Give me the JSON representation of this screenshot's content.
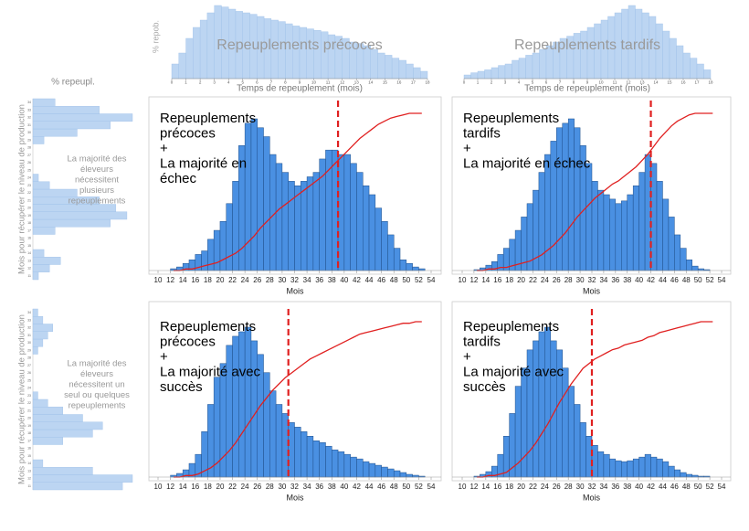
{
  "chart_data": [
    {
      "type": "histogram",
      "title": "Repeuplements précoces",
      "ylabel": "% repob.",
      "xlabel": "Temps de repeuplement (mois)",
      "color": "#bcd5f2",
      "bins": [
        0,
        0.5,
        1,
        1.5,
        2,
        2.5,
        3,
        3.5,
        4,
        4.5,
        5,
        5.5,
        6,
        6.5,
        7,
        7.5,
        8,
        8.5,
        9,
        9.5,
        10,
        10.5,
        11,
        11.5,
        12,
        12.5,
        13,
        13.5,
        14,
        14.5,
        15,
        15.5,
        16,
        16.5,
        17,
        17.5,
        18
      ],
      "values": [
        20,
        35,
        55,
        70,
        80,
        90,
        100,
        98,
        95,
        92,
        90,
        88,
        85,
        82,
        80,
        78,
        75,
        72,
        70,
        68,
        66,
        64,
        60,
        58,
        55,
        50,
        48,
        45,
        40,
        35,
        32,
        28,
        25,
        20,
        15,
        10
      ],
      "xlim": [
        0,
        18
      ],
      "xticks": [
        0,
        1,
        2,
        3,
        4,
        5,
        6,
        7,
        8,
        9,
        10,
        11,
        12,
        13,
        14,
        15,
        16,
        17,
        18
      ]
    },
    {
      "type": "histogram",
      "title": "Repeuplements tardifs",
      "xlabel": "Temps de repeuplement (mois)",
      "color": "#bcd5f2",
      "bins": [
        0,
        0.5,
        1,
        1.5,
        2,
        2.5,
        3,
        3.5,
        4,
        4.5,
        5,
        5.5,
        6,
        6.5,
        7,
        7.5,
        8,
        8.5,
        9,
        9.5,
        10,
        10.5,
        11,
        11.5,
        12,
        12.5,
        13,
        13.5,
        14,
        14.5,
        15,
        15.5,
        16,
        16.5,
        17,
        17.5,
        18
      ],
      "values": [
        5,
        8,
        10,
        12,
        15,
        18,
        20,
        25,
        28,
        32,
        35,
        40,
        45,
        50,
        55,
        58,
        62,
        65,
        70,
        75,
        80,
        85,
        90,
        95,
        100,
        95,
        90,
        85,
        75,
        65,
        55,
        45,
        35,
        28,
        20,
        12
      ],
      "xlim": [
        0,
        18
      ],
      "xticks": [
        0,
        1,
        2,
        3,
        4,
        5,
        6,
        7,
        8,
        9,
        10,
        11,
        12,
        13,
        14,
        15,
        16,
        17,
        18
      ]
    },
    {
      "type": "barh",
      "title": "% repeupl.",
      "ylabel": "Mois pour récupérer le niveau de production",
      "color": "#bcd5f2",
      "annotation": [
        "La majorité des",
        "éleveurs",
        "nécessitent",
        "plusieurs",
        "repeuplements"
      ],
      "categories": [
        11,
        12,
        13,
        14,
        15,
        16,
        17,
        18,
        19,
        20,
        21,
        22,
        23,
        24,
        25,
        26,
        27,
        28,
        29,
        30,
        31,
        32,
        33,
        34
      ],
      "values": [
        5,
        15,
        25,
        10,
        0,
        0,
        20,
        70,
        85,
        75,
        60,
        40,
        15,
        5,
        0,
        0,
        0,
        0,
        10,
        40,
        70,
        90,
        60,
        20
      ]
    },
    {
      "type": "barh",
      "ylabel": "Mois pour récupérer le niveau de production",
      "color": "#bcd5f2",
      "annotation": [
        "La majorité des",
        "éleveurs",
        "nécessitent un",
        "seul ou quelques",
        "repeuplements"
      ],
      "categories": [
        11,
        12,
        13,
        14,
        15,
        16,
        17,
        18,
        19,
        20,
        21,
        22,
        23,
        24,
        25,
        26,
        27,
        28,
        29,
        30,
        31,
        32,
        33,
        34
      ],
      "values": [
        90,
        100,
        60,
        10,
        0,
        0,
        30,
        60,
        70,
        50,
        30,
        15,
        5,
        0,
        0,
        0,
        0,
        0,
        5,
        10,
        15,
        20,
        10,
        5
      ]
    },
    {
      "type": "histogram-cdf",
      "xlabel": "Mois",
      "color": "#4a90e2",
      "line_color": "#e02020",
      "threshold": 39,
      "annotation": [
        "Repeuplements",
        "précoces",
        "+",
        "La majorité en",
        "échec"
      ],
      "bins": [
        12,
        13,
        14,
        15,
        16,
        17,
        18,
        19,
        20,
        21,
        22,
        23,
        24,
        25,
        26,
        27,
        28,
        29,
        30,
        31,
        32,
        33,
        34,
        35,
        36,
        37,
        38,
        39,
        40,
        41,
        42,
        43,
        44,
        45,
        46,
        47,
        48,
        49,
        50,
        51,
        52,
        53
      ],
      "values": [
        2,
        4,
        8,
        12,
        18,
        22,
        35,
        45,
        55,
        75,
        100,
        140,
        165,
        170,
        160,
        150,
        130,
        120,
        110,
        100,
        95,
        100,
        105,
        110,
        125,
        135,
        135,
        130,
        130,
        120,
        110,
        95,
        85,
        70,
        55,
        40,
        25,
        12,
        8,
        4,
        2
      ],
      "cumulative": [
        0,
        0,
        1,
        1,
        2,
        3,
        4,
        5,
        7,
        9,
        11,
        14,
        18,
        22,
        27,
        31,
        35,
        39,
        42,
        45,
        48,
        51,
        54,
        57,
        60,
        64,
        68,
        72,
        76,
        80,
        84,
        87,
        90,
        93,
        95,
        97,
        98,
        99,
        100,
        100,
        100
      ],
      "xlim": [
        10,
        54
      ],
      "xticks": [
        10,
        12,
        14,
        16,
        18,
        20,
        22,
        24,
        26,
        28,
        30,
        32,
        34,
        36,
        38,
        40,
        42,
        44,
        46,
        48,
        50,
        52,
        54
      ]
    },
    {
      "type": "histogram-cdf",
      "xlabel": "Mois",
      "color": "#4a90e2",
      "line_color": "#e02020",
      "threshold": 42,
      "annotation": [
        "Repeuplements",
        "tardifs",
        "+",
        "La majorité en échec"
      ],
      "bins": [
        12,
        13,
        14,
        15,
        16,
        17,
        18,
        19,
        20,
        21,
        22,
        23,
        24,
        25,
        26,
        27,
        28,
        29,
        30,
        31,
        32,
        33,
        34,
        35,
        36,
        37,
        38,
        39,
        40,
        41,
        42,
        43,
        44,
        45,
        46,
        47,
        48,
        49,
        50,
        51,
        52,
        53
      ],
      "values": [
        1,
        3,
        6,
        10,
        18,
        25,
        35,
        45,
        60,
        75,
        90,
        110,
        130,
        145,
        160,
        165,
        170,
        160,
        140,
        120,
        100,
        90,
        85,
        80,
        75,
        78,
        85,
        95,
        110,
        130,
        120,
        100,
        80,
        60,
        40,
        25,
        12,
        5,
        2,
        1,
        0
      ],
      "cumulative": [
        0,
        0,
        1,
        1,
        2,
        2,
        3,
        4,
        5,
        6,
        8,
        10,
        13,
        16,
        20,
        24,
        29,
        34,
        38,
        42,
        46,
        49,
        52,
        55,
        57,
        60,
        63,
        66,
        70,
        74,
        79,
        84,
        88,
        92,
        95,
        97,
        99,
        100,
        100,
        100,
        100
      ],
      "xlim": [
        10,
        54
      ],
      "xticks": [
        10,
        12,
        14,
        16,
        18,
        20,
        22,
        24,
        26,
        28,
        30,
        32,
        34,
        36,
        38,
        40,
        42,
        44,
        46,
        48,
        50,
        52,
        54
      ]
    },
    {
      "type": "histogram-cdf",
      "xlabel": "Mois",
      "color": "#4a90e2",
      "line_color": "#e02020",
      "threshold": 31,
      "annotation": [
        "Repeuplements",
        "précoces",
        "+",
        "La majorité avec",
        "succès"
      ],
      "bins": [
        12,
        13,
        14,
        15,
        16,
        17,
        18,
        19,
        20,
        21,
        22,
        23,
        24,
        25,
        26,
        27,
        28,
        29,
        30,
        31,
        32,
        33,
        34,
        35,
        36,
        37,
        38,
        39,
        40,
        41,
        42,
        43,
        44,
        45,
        46,
        47,
        48,
        49,
        50,
        51,
        52,
        53
      ],
      "values": [
        2,
        4,
        8,
        15,
        25,
        50,
        80,
        110,
        125,
        145,
        155,
        160,
        165,
        150,
        135,
        115,
        95,
        80,
        70,
        60,
        55,
        50,
        45,
        40,
        38,
        34,
        30,
        28,
        25,
        22,
        20,
        17,
        15,
        13,
        11,
        9,
        7,
        5,
        3,
        2,
        1
      ],
      "cumulative": [
        0,
        0,
        1,
        1,
        2,
        4,
        6,
        9,
        13,
        17,
        22,
        28,
        34,
        40,
        46,
        51,
        56,
        60,
        64,
        67,
        70,
        73,
        76,
        78,
        80,
        82,
        84,
        86,
        88,
        90,
        92,
        93,
        94,
        95,
        96,
        97,
        98,
        99,
        99,
        100,
        100
      ],
      "xlim": [
        10,
        54
      ],
      "xticks": [
        10,
        12,
        14,
        16,
        18,
        20,
        22,
        24,
        26,
        28,
        30,
        32,
        34,
        36,
        38,
        40,
        42,
        44,
        46,
        48,
        50,
        52,
        54
      ]
    },
    {
      "type": "histogram-cdf",
      "xlabel": "Mois",
      "color": "#4a90e2",
      "line_color": "#e02020",
      "threshold": 32,
      "annotation": [
        "Repeuplements",
        "tardifs",
        "+",
        "La majorité avec",
        "succès"
      ],
      "bins": [
        12,
        13,
        14,
        15,
        16,
        17,
        18,
        19,
        20,
        21,
        22,
        23,
        24,
        25,
        26,
        27,
        28,
        29,
        30,
        31,
        32,
        33,
        34,
        35,
        36,
        37,
        38,
        39,
        40,
        41,
        42,
        43,
        44,
        45,
        46,
        47,
        48,
        49,
        50,
        51,
        52,
        53
      ],
      "values": [
        1,
        3,
        6,
        12,
        25,
        45,
        70,
        100,
        120,
        140,
        150,
        160,
        165,
        150,
        140,
        120,
        100,
        80,
        60,
        45,
        35,
        28,
        25,
        20,
        18,
        17,
        18,
        20,
        22,
        25,
        22,
        20,
        17,
        12,
        8,
        5,
        3,
        2,
        1,
        1,
        0
      ],
      "cumulative": [
        0,
        0,
        1,
        1,
        2,
        3,
        6,
        9,
        13,
        17,
        22,
        28,
        34,
        41,
        48,
        54,
        60,
        65,
        70,
        73,
        76,
        78,
        80,
        82,
        83,
        85,
        86,
        87,
        88,
        90,
        91,
        93,
        94,
        95,
        96,
        97,
        98,
        99,
        100,
        100,
        100
      ],
      "xlim": [
        10,
        54
      ],
      "xticks": [
        10,
        12,
        14,
        16,
        18,
        20,
        22,
        24,
        26,
        28,
        30,
        32,
        34,
        36,
        38,
        40,
        42,
        44,
        46,
        48,
        50,
        52,
        54
      ]
    }
  ]
}
